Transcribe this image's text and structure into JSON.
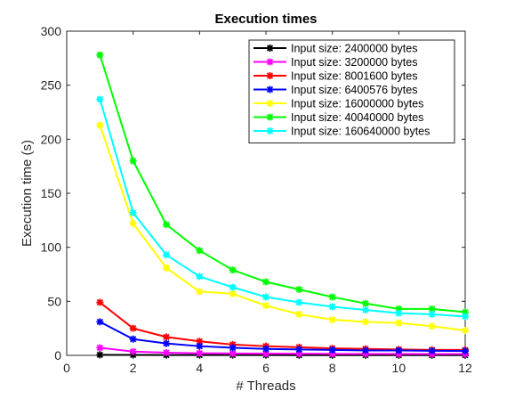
{
  "chart_data": {
    "type": "line",
    "title": "Execution times",
    "xlabel": "# Threads",
    "ylabel": "Execution time (s)",
    "xlim": [
      0,
      12
    ],
    "ylim": [
      0,
      300
    ],
    "xticks": [
      0,
      2,
      4,
      6,
      8,
      10,
      12
    ],
    "yticks": [
      0,
      50,
      100,
      150,
      200,
      250,
      300
    ],
    "grid": false,
    "legend_position": "top-right",
    "marker": "asterisk",
    "x": [
      1,
      2,
      3,
      4,
      5,
      6,
      7,
      8,
      9,
      10,
      11,
      12
    ],
    "series": [
      {
        "name": "Input size: 2400000 bytes",
        "color": "#000000",
        "values": [
          0.5,
          0.4,
          0.3,
          0.3,
          0.3,
          0.3,
          0.2,
          0.2,
          0.2,
          0.2,
          0.2,
          0.2
        ]
      },
      {
        "name": "Input size: 3200000 bytes",
        "color": "#ff00ff",
        "values": [
          7,
          3.5,
          2.5,
          2,
          1.8,
          1.6,
          1.5,
          1.4,
          1.3,
          1.3,
          1.2,
          1.2
        ]
      },
      {
        "name": "Input size: 8001600 bytes",
        "color": "#ff0000",
        "values": [
          49,
          25,
          17,
          13,
          10,
          8.5,
          7.5,
          6.5,
          6,
          5.5,
          5,
          5
        ]
      },
      {
        "name": "Input size: 6400576 bytes",
        "color": "#0000ff",
        "values": [
          31,
          15,
          11,
          8.5,
          7,
          6,
          5.5,
          5,
          4.5,
          4.5,
          4.2,
          4
        ]
      },
      {
        "name": "Input size: 16000000 bytes",
        "color": "#ffff00",
        "values": [
          213,
          122,
          81,
          59,
          57,
          46,
          38,
          33,
          31,
          30,
          27,
          23
        ]
      },
      {
        "name": "Input size: 40040000 bytes",
        "color": "#00ff00",
        "values": [
          278,
          180,
          121,
          97,
          79,
          68,
          61,
          54,
          48,
          43,
          43,
          40
        ]
      },
      {
        "name": "Input size: 160640000 bytes",
        "color": "#00ffff",
        "values": [
          237,
          132,
          93,
          73,
          63,
          54,
          49,
          45,
          42,
          39,
          38,
          36
        ]
      }
    ]
  }
}
